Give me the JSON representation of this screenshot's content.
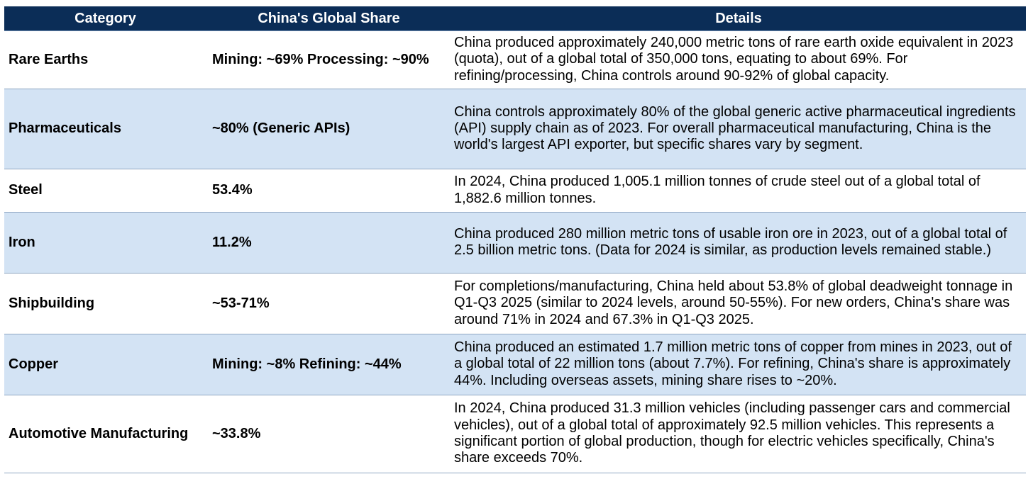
{
  "colors": {
    "header_bg": "#0b2d57",
    "header_text": "#ffffff",
    "alt_row_bg": "#d3e3f4"
  },
  "headers": {
    "category": "Category",
    "share": "China's Global Share",
    "details": "Details"
  },
  "rows": [
    {
      "category": "Rare Earths",
      "share": "Mining: ~69% Processing: ~90%",
      "details": "China produced approximately 240,000 metric tons of rare earth oxide equivalent in 2023 (quota), out of a global total of 350,000 tons, equating to about 69%. For refining/processing, China controls around 90-92% of global capacity."
    },
    {
      "category": "Pharmaceuticals",
      "share": "~80% (Generic APIs)",
      "details": "China controls approximately 80% of the global generic active pharmaceutical ingredients (API) supply chain as of 2023. For overall pharmaceutical manufacturing, China is the world's largest API exporter, but specific shares vary by segment."
    },
    {
      "category": "Steel",
      "share": "53.4%",
      "details": "In 2024, China produced 1,005.1 million tonnes of crude steel out of a global total of 1,882.6 million tonnes."
    },
    {
      "category": "Iron",
      "share": "11.2%",
      "details": "China produced 280 million metric tons of usable iron ore in 2023, out of a global total of 2.5 billion metric tons. (Data for 2024 is similar, as production levels remained stable.)"
    },
    {
      "category": "Shipbuilding",
      "share": "~53-71%",
      "details": "For completions/manufacturing, China held about 53.8% of global deadweight tonnage in Q1-Q3 2025 (similar to 2024 levels, around 50-55%). For new orders, China's share was around 71% in 2024 and 67.3% in Q1-Q3 2025."
    },
    {
      "category": "Copper",
      "share": "Mining: ~8% Refining: ~44%",
      "details": "China produced an estimated 1.7 million metric tons of copper from mines in 2023, out of a global total of 22 million tons (about 7.7%). For refining, China's share is approximately 44%. Including overseas assets, mining share rises to ~20%."
    },
    {
      "category": "Automotive Manufacturing",
      "share": "~33.8%",
      "details": "In 2024, China produced 31.3 million vehicles (including passenger cars and commercial vehicles), out of a global total of approximately 92.5 million vehicles. This represents a significant portion of global production, though for electric vehicles specifically, China's share exceeds 70%."
    }
  ]
}
